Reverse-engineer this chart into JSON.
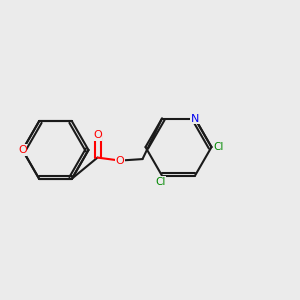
{
  "background_color": "#ebebeb",
  "bond_color": "#1a1a1a",
  "atom_colors": {
    "O": "#ff0000",
    "N": "#0000ee",
    "Cl": "#008800",
    "C": "#1a1a1a"
  },
  "figsize": [
    3.0,
    3.0
  ],
  "dpi": 100
}
